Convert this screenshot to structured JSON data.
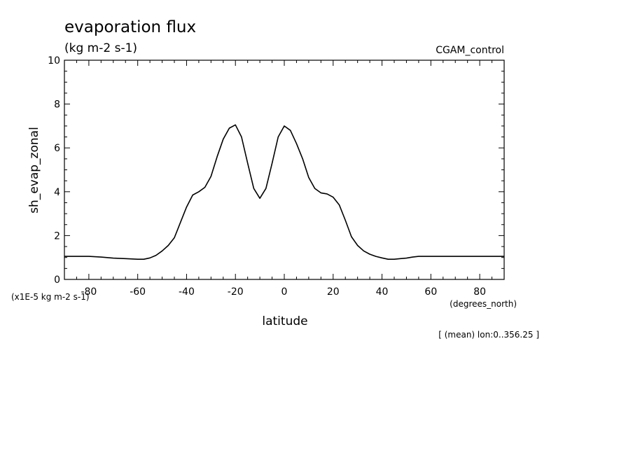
{
  "header": {
    "title": "evaporation flux",
    "units": "(kg m-2 s-1)",
    "run_label": "CGAM_control"
  },
  "footer": {
    "y_scale_note": "(x1E-5 kg m-2 s-1)",
    "x_units": "(degrees_north)",
    "averaging_note": "[ (mean) lon:0..356.25 ]"
  },
  "chart_data": {
    "type": "line",
    "title": "evaporation flux",
    "xlabel": "latitude",
    "ylabel": "sh_evap_zonal",
    "xlim": [
      -90,
      90
    ],
    "ylim": [
      0,
      10
    ],
    "xticks": [
      -80,
      -60,
      -40,
      -20,
      0,
      20,
      40,
      60,
      80
    ],
    "yticks": [
      0,
      2,
      4,
      6,
      8,
      10
    ],
    "grid": false,
    "series": [
      {
        "color": "#000000",
        "x": [
          -90,
          -85,
          -80,
          -75,
          -70,
          -65,
          -60,
          -57.5,
          -55,
          -52.5,
          -50,
          -47.5,
          -45,
          -42.5,
          -40,
          -37.5,
          -35,
          -32.5,
          -30,
          -27.5,
          -25,
          -22.5,
          -20,
          -17.5,
          -15,
          -12.5,
          -10,
          -7.5,
          -5,
          -2.5,
          0,
          2.5,
          5,
          7.5,
          10,
          12.5,
          15,
          17.5,
          20,
          22.5,
          25,
          27.5,
          30,
          32.5,
          35,
          37.5,
          40,
          42.5,
          45,
          47.5,
          50,
          52.5,
          55,
          57.5,
          60,
          65,
          70,
          75,
          80,
          85,
          90
        ],
        "y": [
          1.05,
          1.05,
          1.05,
          1.02,
          0.97,
          0.95,
          0.92,
          0.92,
          0.98,
          1.1,
          1.3,
          1.55,
          1.9,
          2.6,
          3.3,
          3.85,
          4.0,
          4.2,
          4.7,
          5.6,
          6.4,
          6.9,
          7.05,
          6.5,
          5.3,
          4.15,
          3.7,
          4.15,
          5.3,
          6.5,
          7.0,
          6.8,
          6.2,
          5.5,
          4.65,
          4.15,
          3.95,
          3.9,
          3.75,
          3.4,
          2.7,
          1.95,
          1.55,
          1.3,
          1.15,
          1.05,
          0.98,
          0.92,
          0.92,
          0.95,
          0.97,
          1.02,
          1.05,
          1.05,
          1.05,
          1.05,
          1.05,
          1.05,
          1.05,
          1.05,
          1.05
        ]
      }
    ]
  }
}
